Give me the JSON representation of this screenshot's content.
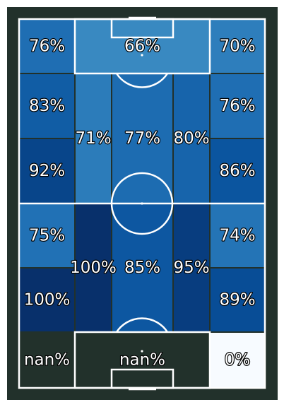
{
  "chart_data": {
    "type": "heatmap",
    "title": "",
    "background": "#22312b",
    "line_color": "#ffffff",
    "empty_zone_color": "#22312b",
    "colormap": [
      "#f7fbff",
      "#deebf7",
      "#c6dbef",
      "#9ecae1",
      "#6baed6",
      "#4292c6",
      "#2171b5",
      "#08519c",
      "#08306b"
    ],
    "value_range": [
      0,
      100
    ],
    "zones": [
      {
        "id": "z1",
        "value": 76,
        "label": "76%"
      },
      {
        "id": "z2",
        "value": 66,
        "label": "66%"
      },
      {
        "id": "z3",
        "value": 70,
        "label": "70%"
      },
      {
        "id": "z4",
        "value": 83,
        "label": "83%"
      },
      {
        "id": "z5",
        "value": 71,
        "label": "71%"
      },
      {
        "id": "z6",
        "value": 77,
        "label": "77%"
      },
      {
        "id": "z7",
        "value": 80,
        "label": "80%"
      },
      {
        "id": "z8",
        "value": 76,
        "label": "76%"
      },
      {
        "id": "z9",
        "value": 92,
        "label": "92%"
      },
      {
        "id": "z10",
        "value": 86,
        "label": "86%"
      },
      {
        "id": "z11",
        "value": 75,
        "label": "75%"
      },
      {
        "id": "z12",
        "value": 100,
        "label": "100%"
      },
      {
        "id": "z13",
        "value": 85,
        "label": "85%"
      },
      {
        "id": "z14",
        "value": 95,
        "label": "95%"
      },
      {
        "id": "z15",
        "value": 74,
        "label": "74%"
      },
      {
        "id": "z16",
        "value": 100,
        "label": "100%"
      },
      {
        "id": "z17",
        "value": 89,
        "label": "89%"
      },
      {
        "id": "z18",
        "value": null,
        "label": "nan%"
      },
      {
        "id": "z19",
        "value": null,
        "label": "nan%"
      },
      {
        "id": "z20",
        "value": 0,
        "label": "0%"
      }
    ]
  }
}
